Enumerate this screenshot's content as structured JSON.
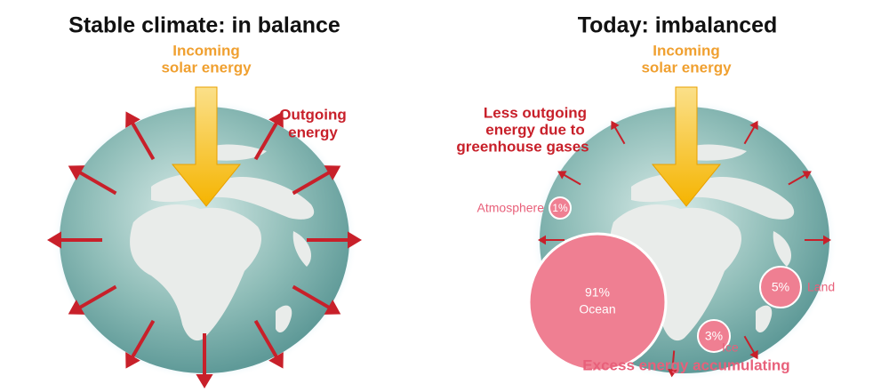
{
  "panels": [
    {
      "title": "Stable climate: in balance",
      "incoming": [
        "Incoming",
        "solar energy"
      ],
      "outgoing": [
        "Outgoing",
        "energy"
      ]
    },
    {
      "title": "Today: imbalanced",
      "incoming": [
        "Incoming",
        "solar energy"
      ],
      "outgoing": [
        "Less outgoing",
        "energy due to",
        "greenhouse gases"
      ],
      "reservoirs": [
        {
          "percent": "1%",
          "label": "Atmosphere"
        },
        {
          "percent": "91%",
          "label": "Ocean"
        },
        {
          "percent": "5%",
          "label": "Land"
        },
        {
          "percent": "3%",
          "label": "Ice"
        }
      ],
      "footer": "Excess energy accumulating"
    }
  ]
}
